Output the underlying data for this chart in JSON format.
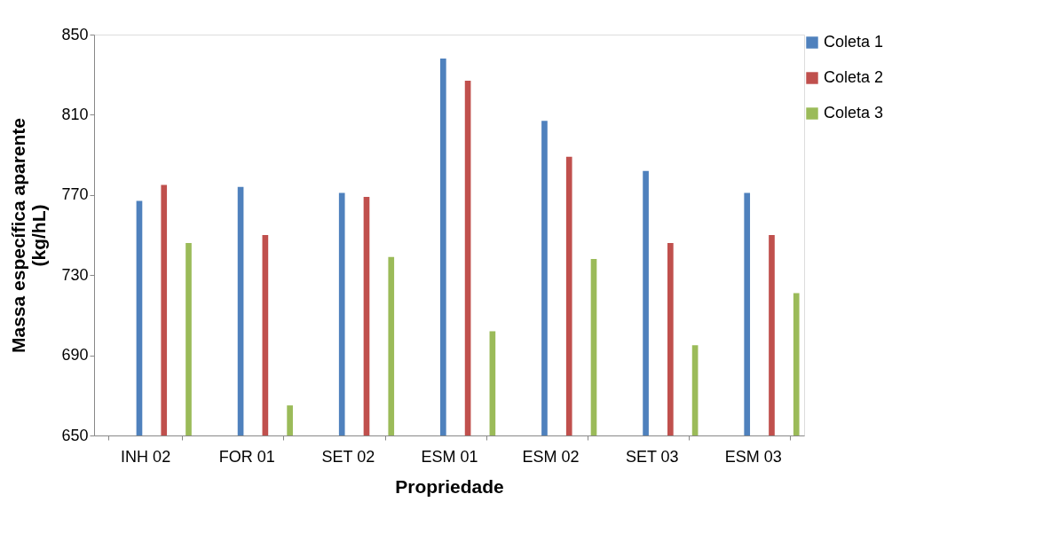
{
  "chart_data": {
    "type": "bar",
    "xlabel": "Propriedade",
    "ylabel": "Massa específica aparente (kg/hL)",
    "categories": [
      "INH 02",
      "FOR 01",
      "SET 02",
      "ESM 01",
      "ESM 02",
      "SET 03",
      "ESM 03"
    ],
    "series": [
      {
        "name": "Coleta 1",
        "color": "#4f81bd",
        "values": [
          767,
          774,
          771,
          838,
          807,
          782,
          771
        ]
      },
      {
        "name": "Coleta 2",
        "color": "#c0504d",
        "values": [
          775,
          750,
          769,
          827,
          789,
          746,
          750
        ]
      },
      {
        "name": "Coleta 3",
        "color": "#9bbb59",
        "values": [
          746,
          665,
          739,
          702,
          738,
          695,
          721
        ]
      }
    ],
    "ylim": [
      650,
      850
    ],
    "yticks": [
      650,
      690,
      730,
      770,
      810,
      850
    ],
    "grid": false,
    "legend": "top right"
  }
}
